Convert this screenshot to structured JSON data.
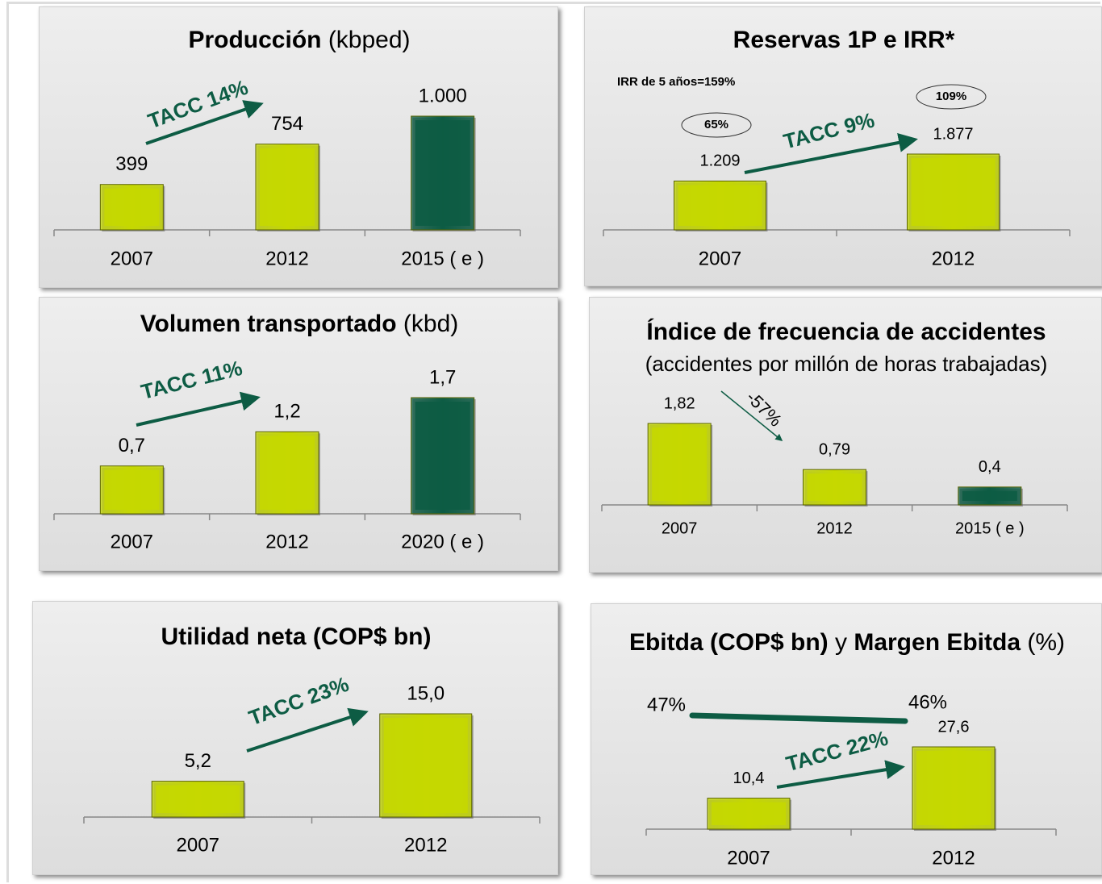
{
  "chart_data": [
    {
      "type": "bar",
      "title_parts": [
        {
          "text": "Producción",
          "bold": true
        },
        {
          "text": "(kbped)",
          "bold": false
        }
      ],
      "categories": [
        "2007",
        "2012",
        "2015 ( e )"
      ],
      "values": [
        399,
        754,
        1000
      ],
      "value_labels": [
        "399",
        "754",
        "1.000"
      ],
      "colors": [
        "#c5d800",
        "#c5d800",
        "#0d5c44"
      ],
      "annotations": [
        "TACC 14%"
      ]
    },
    {
      "type": "bar",
      "title_parts": [
        {
          "text": "Reservas 1P e IRR*",
          "bold": true
        }
      ],
      "note": "IRR de 5 años=159%",
      "circled_labels": [
        "65%",
        "109%"
      ],
      "categories": [
        "2007",
        "2012"
      ],
      "values": [
        1209,
        1877
      ],
      "value_labels": [
        "1.209",
        "1.877"
      ],
      "colors": [
        "#c5d800",
        "#c5d800"
      ],
      "annotations": [
        "TACC 9%"
      ]
    },
    {
      "type": "bar",
      "title_parts": [
        {
          "text": "Volumen transportado",
          "bold": true
        },
        {
          "text": "(kbd)",
          "bold": false
        }
      ],
      "categories": [
        "2007",
        "2012",
        "2020 ( e )"
      ],
      "values": [
        0.7,
        1.2,
        1.7
      ],
      "value_labels": [
        "0,7",
        "1,2",
        "1,7"
      ],
      "colors": [
        "#c5d800",
        "#c5d800",
        "#0d5c44"
      ],
      "annotations": [
        "TACC 11%"
      ]
    },
    {
      "type": "bar",
      "title_parts": [
        {
          "text": "Índice de frecuencia de accidentes",
          "bold": true
        }
      ],
      "subtitle": "(accidentes por millón de horas trabajadas)",
      "categories": [
        "2007",
        "2012",
        "2015 ( e )"
      ],
      "values": [
        1.82,
        0.79,
        0.4
      ],
      "value_labels": [
        "1,82",
        "0,79",
        "0,4"
      ],
      "colors": [
        "#c5d800",
        "#c5d800",
        "#0d5c44"
      ],
      "annotations": [
        "-57%"
      ]
    },
    {
      "type": "bar",
      "title_parts": [
        {
          "text": "Utilidad neta (COP$ bn)",
          "bold": true
        }
      ],
      "categories": [
        "2007",
        "2012"
      ],
      "values": [
        5.2,
        15.0
      ],
      "value_labels": [
        "5,2",
        "15,0"
      ],
      "colors": [
        "#c5d800",
        "#c5d800"
      ],
      "annotations": [
        "TACC 23%"
      ]
    },
    {
      "type": "bar",
      "title_parts": [
        {
          "text": "Ebitda",
          "bold": true
        },
        {
          "text": "(COP$ bn)",
          "bold": true
        },
        {
          "text": "y",
          "bold": false
        },
        {
          "text": "Margen Ebitda",
          "bold": true
        },
        {
          "text": "(%)",
          "bold": false
        }
      ],
      "categories": [
        "2007",
        "2012"
      ],
      "values": [
        10.4,
        27.6
      ],
      "value_labels": [
        "10,4",
        "27,6"
      ],
      "colors": [
        "#c5d800",
        "#c5d800"
      ],
      "line_values": [
        47,
        46
      ],
      "line_value_labels": [
        "47%",
        "46%"
      ],
      "line_color": "#0d5c44",
      "annotations": [
        "TACC 22%"
      ]
    }
  ]
}
